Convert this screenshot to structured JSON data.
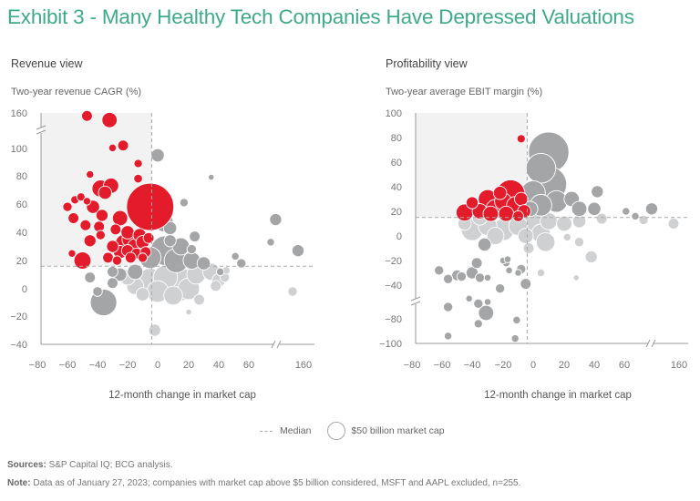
{
  "title": "Exhibit 3 - Many Healthy Tech Companies Have Depressed Valuations",
  "legend": {
    "median_label": "Median",
    "bubble_label": "$50 billion market cap"
  },
  "footer": {
    "sources_label": "Sources:",
    "sources_text": "S&P Capital IQ; BCG analysis.",
    "note_label": "Note:",
    "note_text": "Data as of January 27, 2023; companies with market cap above $5 billion considered, MSFT and AAPL excluded, n=255."
  },
  "colors": {
    "title": "#3eaa8b",
    "highlight": "#e31b2b",
    "dark_gray": "#a4a5a7",
    "light_gray": "#cfd0d2",
    "quadrant_bg": "#f2f2f3"
  },
  "chart_data": [
    {
      "type": "scatter",
      "title": "Revenue view",
      "ylabel": "Two-year revenue CAGR (%)",
      "xlabel": "12-month change in market cap",
      "x_ticks": [
        "−80",
        "−60",
        "−40",
        "−20",
        "0",
        "20",
        "40",
        "60",
        "160"
      ],
      "y_ticks": [
        "160",
        "100",
        "80",
        "60",
        "40",
        "20",
        "0",
        "−20",
        "−40"
      ],
      "xlim": [
        -80,
        160
      ],
      "ylim": [
        -40,
        160
      ],
      "axis_breaks": {
        "x": "between 60 and 160",
        "y": "between 100 and 160"
      },
      "median": {
        "x": -4,
        "y": 16
      },
      "highlight_quadrant": "top-left",
      "points": [
        {
          "x": -47,
          "y": 155,
          "s": 2,
          "c": "r"
        },
        {
          "x": -32,
          "y": 148,
          "s": 4,
          "c": "r"
        },
        {
          "x": -30,
          "y": 101,
          "s": 1,
          "c": "r"
        },
        {
          "x": -23,
          "y": 105,
          "s": 2,
          "c": "r"
        },
        {
          "x": -13,
          "y": 89,
          "s": 1.2,
          "c": "r"
        },
        {
          "x": -45,
          "y": 81,
          "s": 1,
          "c": "r"
        },
        {
          "x": -38,
          "y": 71,
          "s": 5,
          "c": "r"
        },
        {
          "x": -35,
          "y": 68,
          "s": 3,
          "c": "r"
        },
        {
          "x": -31,
          "y": 73,
          "s": 4,
          "c": "r"
        },
        {
          "x": -60,
          "y": 58,
          "s": 1.5,
          "c": "r"
        },
        {
          "x": -55,
          "y": 63,
          "s": 1.2,
          "c": "r"
        },
        {
          "x": -51,
          "y": 65,
          "s": 1.2,
          "c": "r"
        },
        {
          "x": -47,
          "y": 62,
          "s": 1,
          "c": "r"
        },
        {
          "x": -43,
          "y": 58,
          "s": 3,
          "c": "r"
        },
        {
          "x": -56,
          "y": 50,
          "s": 2,
          "c": "r"
        },
        {
          "x": -37,
          "y": 52,
          "s": 2.5,
          "c": "r"
        },
        {
          "x": -48,
          "y": 45,
          "s": 2,
          "c": "r"
        },
        {
          "x": -39,
          "y": 44,
          "s": 2,
          "c": "r"
        },
        {
          "x": -45,
          "y": 34,
          "s": 2.5,
          "c": "r"
        },
        {
          "x": -38,
          "y": 38,
          "s": 1.5,
          "c": "r"
        },
        {
          "x": -57,
          "y": 25,
          "s": 1,
          "c": "r"
        },
        {
          "x": -50,
          "y": 20,
          "s": 5,
          "c": "r"
        },
        {
          "x": -13,
          "y": 78,
          "s": 1.3,
          "c": "r"
        },
        {
          "x": -5,
          "y": 58,
          "s": 38,
          "c": "r"
        },
        {
          "x": -25,
          "y": 50,
          "s": 4,
          "c": "r"
        },
        {
          "x": -20,
          "y": 40,
          "s": 3,
          "c": "r"
        },
        {
          "x": -28,
          "y": 42,
          "s": 2,
          "c": "r"
        },
        {
          "x": -22,
          "y": 32,
          "s": 6,
          "c": "r"
        },
        {
          "x": -18,
          "y": 35,
          "s": 5,
          "c": "r"
        },
        {
          "x": -15,
          "y": 30,
          "s": 4,
          "c": "r"
        },
        {
          "x": -12,
          "y": 38,
          "s": 3,
          "c": "r"
        },
        {
          "x": -10,
          "y": 33,
          "s": 3,
          "c": "r"
        },
        {
          "x": -25,
          "y": 26,
          "s": 3,
          "c": "r"
        },
        {
          "x": -30,
          "y": 30,
          "s": 2.5,
          "c": "r"
        },
        {
          "x": -14,
          "y": 25,
          "s": 2,
          "c": "r"
        },
        {
          "x": -8,
          "y": 26,
          "s": 2,
          "c": "r"
        },
        {
          "x": -18,
          "y": 22,
          "s": 2,
          "c": "r"
        },
        {
          "x": -27,
          "y": 20,
          "s": 1.5,
          "c": "r"
        },
        {
          "x": -6,
          "y": 36,
          "s": 2,
          "c": "r"
        },
        {
          "x": -33,
          "y": 22,
          "s": 2,
          "c": "r"
        },
        {
          "x": -20,
          "y": 27,
          "s": 2.5,
          "c": "r"
        },
        {
          "x": -10,
          "y": 22,
          "s": 1.5,
          "c": "r"
        },
        {
          "x": 0,
          "y": 95,
          "s": 3,
          "c": "d"
        },
        {
          "x": -2,
          "y": 72,
          "s": 1,
          "c": "d"
        },
        {
          "x": 35,
          "y": 79,
          "s": 0.6,
          "c": "d"
        },
        {
          "x": 17,
          "y": 61,
          "s": 1.2,
          "c": "d"
        },
        {
          "x": -4,
          "y": 57,
          "s": 10,
          "c": "d"
        },
        {
          "x": 4,
          "y": 47,
          "s": 6,
          "c": "d"
        },
        {
          "x": 8,
          "y": 43,
          "s": 3,
          "c": "d"
        },
        {
          "x": 8,
          "y": 34,
          "s": 2.5,
          "c": "d"
        },
        {
          "x": 24,
          "y": 37,
          "s": 2,
          "c": "d"
        },
        {
          "x": 22,
          "y": 28,
          "s": 1.5,
          "c": "d"
        },
        {
          "x": 109,
          "y": 49,
          "s": 2.5,
          "c": "d"
        },
        {
          "x": 100,
          "y": 33,
          "s": 1,
          "c": "d"
        },
        {
          "x": 150,
          "y": 27,
          "s": 2.5,
          "c": "d"
        },
        {
          "x": 51,
          "y": 23,
          "s": 1,
          "c": "d"
        },
        {
          "x": 55,
          "y": 18,
          "s": 1.5,
          "c": "d"
        },
        {
          "x": 41,
          "y": 12,
          "s": 1,
          "c": "d"
        },
        {
          "x": 5,
          "y": 27,
          "s": 15,
          "c": "d"
        },
        {
          "x": 12,
          "y": 20,
          "s": 10,
          "c": "d"
        },
        {
          "x": -5,
          "y": 22,
          "s": 8,
          "c": "d"
        },
        {
          "x": 15,
          "y": 30,
          "s": 5,
          "c": "d"
        },
        {
          "x": 22,
          "y": 20,
          "s": 5,
          "c": "d"
        },
        {
          "x": 30,
          "y": 18,
          "s": 3,
          "c": "d"
        },
        {
          "x": -30,
          "y": 4,
          "s": 2,
          "c": "d"
        },
        {
          "x": -36,
          "y": -10,
          "s": 12,
          "c": "d"
        },
        {
          "x": -45,
          "y": 8,
          "s": 2,
          "c": "d"
        },
        {
          "x": -40,
          "y": -2,
          "s": 1.6,
          "c": "d"
        },
        {
          "x": -25,
          "y": 10,
          "s": 3,
          "c": "d"
        },
        {
          "x": -15,
          "y": 12,
          "s": 4,
          "c": "d"
        },
        {
          "x": -30,
          "y": 12,
          "s": 2,
          "c": "d"
        },
        {
          "x": 15,
          "y": 3,
          "s": 18,
          "c": "l"
        },
        {
          "x": -5,
          "y": 5,
          "s": 12,
          "c": "l"
        },
        {
          "x": 5,
          "y": 8,
          "s": 10,
          "c": "l"
        },
        {
          "x": 25,
          "y": 10,
          "s": 6,
          "c": "l"
        },
        {
          "x": 35,
          "y": 12,
          "s": 5,
          "c": "l"
        },
        {
          "x": -15,
          "y": 2,
          "s": 5,
          "c": "l"
        },
        {
          "x": -20,
          "y": 8,
          "s": 4,
          "c": "l"
        },
        {
          "x": 20,
          "y": 0,
          "s": 8,
          "c": "l"
        },
        {
          "x": 40,
          "y": 6,
          "s": 3,
          "c": "l"
        },
        {
          "x": 38,
          "y": 2,
          "s": 2,
          "c": "l"
        },
        {
          "x": 44,
          "y": 8,
          "s": 1.5,
          "c": "l"
        },
        {
          "x": 45,
          "y": 13,
          "s": 1,
          "c": "l"
        },
        {
          "x": -2,
          "y": -30,
          "s": 2.5,
          "c": "l"
        },
        {
          "x": 20,
          "y": -17,
          "s": 0.6,
          "c": "l"
        },
        {
          "x": 140,
          "y": -2,
          "s": 1.5,
          "c": "l"
        },
        {
          "x": 27,
          "y": -8,
          "s": 2,
          "c": "l"
        },
        {
          "x": 10,
          "y": -5,
          "s": 6,
          "c": "l"
        },
        {
          "x": 0,
          "y": -2,
          "s": 8,
          "c": "l"
        },
        {
          "x": -10,
          "y": -4,
          "s": 3,
          "c": "l"
        }
      ]
    },
    {
      "type": "scatter",
      "title": "Profitability view",
      "ylabel": "Two-year average EBIT margin (%)",
      "xlabel": "12-month change in market cap",
      "x_ticks": [
        "−80",
        "−60",
        "−40",
        "−20",
        "0",
        "20",
        "40",
        "60",
        "160"
      ],
      "y_ticks": [
        "100",
        "80",
        "60",
        "40",
        "20",
        "0",
        "−20",
        "−40",
        "−80",
        "−100"
      ],
      "xlim": [
        -80,
        160
      ],
      "ylim": [
        -100,
        100
      ],
      "axis_breaks": {
        "x": "between 60 and 160",
        "y": "between −40 and −80"
      },
      "median": {
        "x": -4,
        "y": 15
      },
      "highlight_quadrant": "top-left",
      "points": [
        {
          "x": -8,
          "y": 79,
          "s": 1.2,
          "c": "r"
        },
        {
          "x": -40,
          "y": 27,
          "s": 2.5,
          "c": "r"
        },
        {
          "x": -45,
          "y": 19,
          "s": 5,
          "c": "r"
        },
        {
          "x": -15,
          "y": 34,
          "s": 14,
          "c": "r"
        },
        {
          "x": -30,
          "y": 30,
          "s": 6,
          "c": "r"
        },
        {
          "x": -25,
          "y": 22,
          "s": 6,
          "c": "r"
        },
        {
          "x": -20,
          "y": 28,
          "s": 5,
          "c": "r"
        },
        {
          "x": -12,
          "y": 25,
          "s": 5,
          "c": "r"
        },
        {
          "x": -35,
          "y": 20,
          "s": 4,
          "c": "r"
        },
        {
          "x": -28,
          "y": 18,
          "s": 4,
          "c": "r"
        },
        {
          "x": -18,
          "y": 18,
          "s": 4,
          "c": "r"
        },
        {
          "x": -8,
          "y": 30,
          "s": 3,
          "c": "r"
        },
        {
          "x": -6,
          "y": 20,
          "s": 3,
          "c": "r"
        },
        {
          "x": -10,
          "y": 16,
          "s": 2,
          "c": "r"
        },
        {
          "x": -22,
          "y": 35,
          "s": 3,
          "c": "r"
        },
        {
          "x": 10,
          "y": 68,
          "s": 28,
          "c": "d"
        },
        {
          "x": 5,
          "y": 55,
          "s": 15,
          "c": "d"
        },
        {
          "x": 10,
          "y": 42,
          "s": 22,
          "c": "d"
        },
        {
          "x": 0,
          "y": 35,
          "s": 10,
          "c": "d"
        },
        {
          "x": 15,
          "y": 28,
          "s": 8,
          "c": "d"
        },
        {
          "x": 5,
          "y": 25,
          "s": 8,
          "c": "d"
        },
        {
          "x": 25,
          "y": 30,
          "s": 4,
          "c": "d"
        },
        {
          "x": 30,
          "y": 22,
          "s": 4,
          "c": "d"
        },
        {
          "x": 42,
          "y": 36,
          "s": 2.5,
          "c": "d"
        },
        {
          "x": 40,
          "y": 22,
          "s": 3,
          "c": "d"
        },
        {
          "x": 63,
          "y": 20,
          "s": 1,
          "c": "d"
        },
        {
          "x": 80,
          "y": 16,
          "s": 1,
          "c": "d"
        },
        {
          "x": 110,
          "y": 22,
          "s": 2.5,
          "c": "d"
        },
        {
          "x": -2,
          "y": 22,
          "s": 4,
          "c": "d"
        },
        {
          "x": -40,
          "y": 5,
          "s": 8,
          "c": "l"
        },
        {
          "x": -30,
          "y": 8,
          "s": 6,
          "c": "l"
        },
        {
          "x": -20,
          "y": 5,
          "s": 8,
          "c": "l"
        },
        {
          "x": -10,
          "y": 8,
          "s": 6,
          "c": "l"
        },
        {
          "x": 0,
          "y": 10,
          "s": 8,
          "c": "l"
        },
        {
          "x": 10,
          "y": 12,
          "s": 5,
          "c": "l"
        },
        {
          "x": 20,
          "y": 10,
          "s": 4,
          "c": "l"
        },
        {
          "x": 30,
          "y": 12,
          "s": 3,
          "c": "l"
        },
        {
          "x": -35,
          "y": 15,
          "s": 4,
          "c": "l"
        },
        {
          "x": -45,
          "y": 10,
          "s": 3,
          "c": "l"
        },
        {
          "x": -25,
          "y": 0,
          "s": 5,
          "c": "l"
        },
        {
          "x": -5,
          "y": 0,
          "s": 4,
          "c": "l"
        },
        {
          "x": 5,
          "y": 2,
          "s": 6,
          "c": "l"
        },
        {
          "x": 45,
          "y": 14,
          "s": 2,
          "c": "l"
        },
        {
          "x": 38,
          "y": -17,
          "s": 2.5,
          "c": "l"
        },
        {
          "x": 22,
          "y": -1,
          "s": 1,
          "c": "l"
        },
        {
          "x": 8,
          "y": -5,
          "s": 6,
          "c": "l"
        },
        {
          "x": 150,
          "y": 10,
          "s": 2,
          "c": "l"
        },
        {
          "x": 95,
          "y": 13,
          "s": 1.5,
          "c": "l"
        },
        {
          "x": 30,
          "y": -5,
          "s": 1.5,
          "c": "l"
        },
        {
          "x": -3,
          "y": -10,
          "s": 2,
          "c": "l"
        },
        {
          "x": 5,
          "y": -30,
          "s": 1,
          "c": "l"
        },
        {
          "x": 28,
          "y": -34,
          "s": 0.6,
          "c": "l"
        },
        {
          "x": -62,
          "y": -28,
          "s": 1.5,
          "c": "d"
        },
        {
          "x": -56,
          "y": -35,
          "s": 1.5,
          "c": "d"
        },
        {
          "x": -50,
          "y": -32,
          "s": 2,
          "c": "d"
        },
        {
          "x": -47,
          "y": -33,
          "s": 1.5,
          "c": "d"
        },
        {
          "x": -40,
          "y": -30,
          "s": 2.5,
          "c": "d"
        },
        {
          "x": -37,
          "y": -22,
          "s": 2,
          "c": "d"
        },
        {
          "x": -35,
          "y": -34,
          "s": 1.5,
          "c": "d"
        },
        {
          "x": -30,
          "y": -34,
          "s": 0.8,
          "c": "d"
        },
        {
          "x": -20,
          "y": -20,
          "s": 0.8,
          "c": "d"
        },
        {
          "x": -18,
          "y": -22,
          "s": 1,
          "c": "d"
        },
        {
          "x": -16,
          "y": -28,
          "s": 0.8,
          "c": "d"
        },
        {
          "x": -10,
          "y": -30,
          "s": 0.8,
          "c": "d"
        },
        {
          "x": -8,
          "y": -27,
          "s": 1.5,
          "c": "d"
        },
        {
          "x": -5,
          "y": -39,
          "s": 2,
          "c": "d"
        },
        {
          "x": -22,
          "y": -44,
          "s": 1.5,
          "c": "d"
        },
        {
          "x": -30,
          "y": -60,
          "s": 0.8,
          "c": "d"
        },
        {
          "x": -42,
          "y": -56,
          "s": 0.8,
          "c": "d"
        },
        {
          "x": -36,
          "y": -62,
          "s": 1.5,
          "c": "d"
        },
        {
          "x": -56,
          "y": -66,
          "s": 1.5,
          "c": "d"
        },
        {
          "x": -31,
          "y": -73,
          "s": 4,
          "c": "d"
        },
        {
          "x": -36,
          "y": -84,
          "s": 1.2,
          "c": "d"
        },
        {
          "x": -11,
          "y": -81,
          "s": 1,
          "c": "d"
        },
        {
          "x": -56,
          "y": -94,
          "s": 1,
          "c": "d"
        },
        {
          "x": -12,
          "y": -96,
          "s": 1,
          "c": "d"
        },
        {
          "x": -17,
          "y": -19,
          "s": 0.8,
          "c": "d"
        },
        {
          "x": -32,
          "y": -7,
          "s": 3,
          "c": "d"
        }
      ]
    }
  ]
}
